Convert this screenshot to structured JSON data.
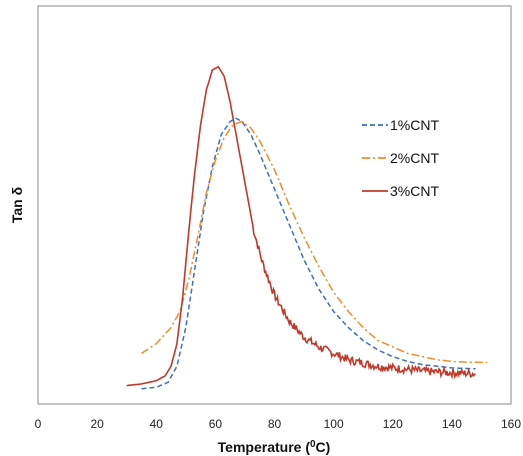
{
  "chart_data": {
    "type": "line",
    "title": "",
    "xlabel": "Temperature (",
    "xlabel_sup": "0",
    "xlabel_suffix": "C)",
    "ylabel": "Tan δ",
    "xlim": [
      0,
      160
    ],
    "ylim": [
      0,
      1
    ],
    "x_ticks": [
      "0",
      "20",
      "40",
      "60",
      "80",
      "100",
      "120",
      "140",
      "160"
    ],
    "y_ticks_visible": false,
    "grid": false,
    "legend_position": "right",
    "series": [
      {
        "name": "1%CNT",
        "style": "dashed",
        "color": "#3a6fc4",
        "x": [
          35,
          40,
          44,
          47,
          50,
          53,
          56,
          59,
          62,
          65,
          67,
          69,
          72,
          75,
          80,
          85,
          90,
          95,
          100,
          105,
          110,
          115,
          120,
          125,
          130,
          135,
          140,
          145,
          148
        ],
        "y": [
          0.01,
          0.015,
          0.03,
          0.08,
          0.2,
          0.38,
          0.56,
          0.7,
          0.8,
          0.84,
          0.85,
          0.84,
          0.8,
          0.74,
          0.63,
          0.52,
          0.41,
          0.32,
          0.25,
          0.2,
          0.16,
          0.13,
          0.11,
          0.095,
          0.085,
          0.08,
          0.075,
          0.073,
          0.072
        ]
      },
      {
        "name": "2%CNT",
        "style": "dash-dot",
        "color": "#f08c2a",
        "x": [
          35,
          40,
          45,
          48,
          51,
          54,
          57,
          60,
          63,
          66,
          69,
          72,
          75,
          80,
          85,
          90,
          95,
          100,
          105,
          110,
          115,
          120,
          125,
          130,
          135,
          140,
          145,
          150,
          152
        ],
        "y": [
          0.12,
          0.15,
          0.2,
          0.25,
          0.35,
          0.48,
          0.62,
          0.72,
          0.79,
          0.83,
          0.84,
          0.82,
          0.78,
          0.69,
          0.58,
          0.48,
          0.39,
          0.31,
          0.25,
          0.2,
          0.16,
          0.14,
          0.12,
          0.11,
          0.1,
          0.095,
          0.093,
          0.092,
          0.092
        ]
      },
      {
        "name": "3%CNT",
        "style": "solid",
        "color": "#c0392b",
        "x": [
          30,
          35,
          40,
          43,
          45,
          47,
          49,
          51,
          53,
          55,
          57,
          59,
          61,
          63,
          65,
          67,
          70,
          73,
          76,
          80,
          85,
          90,
          95,
          100,
          105,
          110,
          115,
          120,
          125,
          130,
          135,
          140,
          145,
          148
        ],
        "y": [
          0.02,
          0.025,
          0.035,
          0.05,
          0.08,
          0.15,
          0.3,
          0.5,
          0.68,
          0.83,
          0.94,
          1.0,
          1.01,
          0.98,
          0.9,
          0.8,
          0.65,
          0.5,
          0.4,
          0.3,
          0.22,
          0.17,
          0.14,
          0.12,
          0.1,
          0.09,
          0.08,
          0.075,
          0.07,
          0.065,
          0.062,
          0.06,
          0.058,
          0.057
        ]
      }
    ]
  }
}
